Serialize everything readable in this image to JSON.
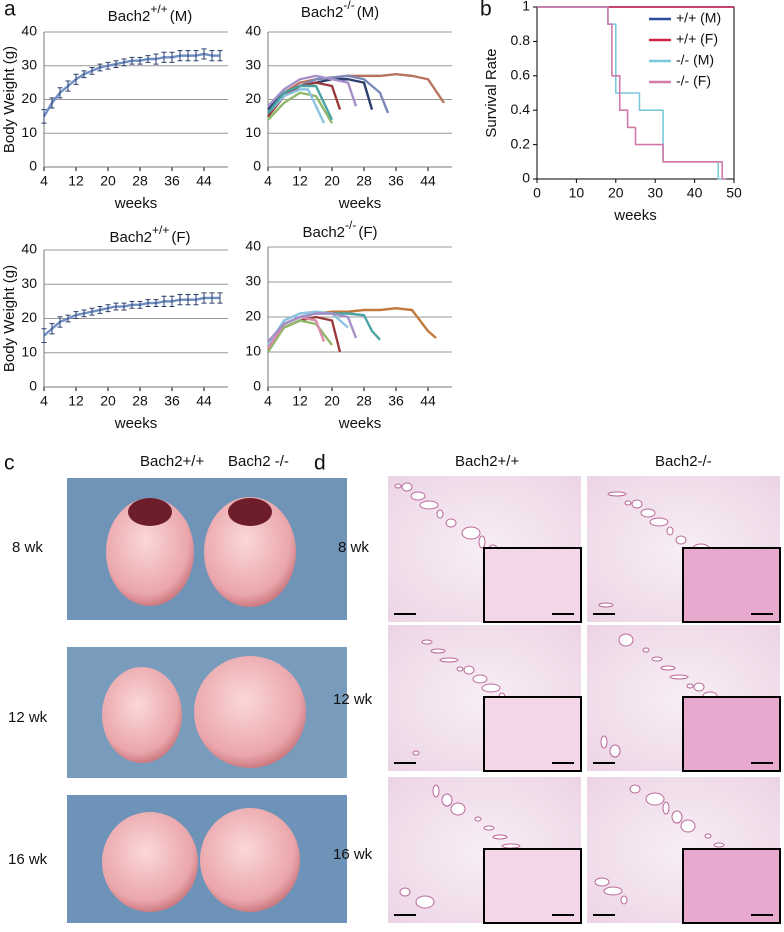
{
  "panel_labels": [
    "a",
    "b",
    "c",
    "d"
  ],
  "chart_data": [
    {
      "type": "line",
      "title": "Bach2",
      "title_sup": "+/+",
      "title_suffix": "(M)",
      "y_label": "Body Weight (g)",
      "x_label": "weeks",
      "xlim": [
        4,
        50
      ],
      "xticks": [
        4,
        12,
        20,
        28,
        36,
        44
      ],
      "ylim": [
        0,
        40
      ],
      "yticks": [
        0,
        10,
        20,
        30,
        40
      ],
      "grid": true,
      "series": [
        {
          "color": "#6f8fc4",
          "x": [
            4,
            6,
            8,
            10,
            12,
            14,
            16,
            18,
            20,
            22,
            24,
            26,
            28,
            30,
            32,
            34,
            36,
            38,
            40,
            42,
            44,
            46,
            48
          ],
          "values": [
            15,
            19,
            22,
            24,
            26,
            27.5,
            28.5,
            29.5,
            30,
            30.5,
            31,
            31.5,
            31.5,
            32,
            32,
            32.5,
            32.5,
            33,
            33,
            33,
            33.5,
            33,
            33
          ],
          "errors": [
            2,
            1.5,
            1.5,
            1.5,
            1.5,
            1,
            1,
            1,
            1,
            1,
            1,
            1,
            1,
            1,
            1.5,
            1.5,
            1.5,
            1.5,
            1.5,
            1.5,
            1.5,
            1.5,
            1.5
          ]
        }
      ]
    },
    {
      "type": "line",
      "title": "Bach2",
      "title_sup": "-/-",
      "title_suffix": "(M)",
      "x_label": "weeks",
      "xlim": [
        4,
        50
      ],
      "xticks": [
        4,
        12,
        20,
        28,
        36,
        44
      ],
      "ylim": [
        0,
        40
      ],
      "yticks": [
        0,
        10,
        20,
        30,
        40
      ],
      "grid": true,
      "series": [
        {
          "color": "#b8735e",
          "x": [
            4,
            8,
            12,
            16,
            20,
            24,
            28,
            32,
            36,
            40,
            44,
            48
          ],
          "values": [
            16,
            22,
            25,
            26,
            26.5,
            27,
            27,
            27,
            27.5,
            27,
            26,
            19
          ]
        },
        {
          "color": "#2f3f6e",
          "x": [
            4,
            8,
            12,
            16,
            20,
            24,
            28,
            30
          ],
          "values": [
            17,
            22,
            24,
            25,
            26,
            26,
            25,
            17
          ]
        },
        {
          "color": "#7b89b8",
          "x": [
            4,
            8,
            12,
            16,
            20,
            24,
            28,
            32,
            34
          ],
          "values": [
            15,
            21,
            24,
            26,
            26.5,
            27,
            26,
            22,
            16
          ]
        },
        {
          "color": "#9a3b3b",
          "x": [
            4,
            8,
            12,
            16,
            20,
            22
          ],
          "values": [
            15,
            21,
            24,
            25,
            24,
            17
          ]
        },
        {
          "color": "#8fb86a",
          "x": [
            4,
            8,
            12,
            16,
            18,
            20
          ],
          "values": [
            14,
            19,
            22,
            21,
            17,
            13
          ]
        },
        {
          "color": "#8cc3e0",
          "x": [
            4,
            8,
            12,
            14,
            18
          ],
          "values": [
            16,
            21,
            23,
            23,
            13
          ]
        },
        {
          "color": "#a58fc9",
          "x": [
            4,
            8,
            12,
            16,
            20,
            24,
            26
          ],
          "values": [
            18,
            23,
            26,
            27,
            26,
            25,
            18
          ]
        },
        {
          "color": "#4aa3a3",
          "x": [
            4,
            8,
            12,
            16,
            20
          ],
          "values": [
            16,
            22,
            24,
            24,
            14
          ]
        }
      ]
    },
    {
      "type": "line",
      "title": "Bach2",
      "title_sup": "+/+",
      "title_suffix": "(F)",
      "y_label": "Body Weight (g)",
      "x_label": "weeks",
      "xlim": [
        4,
        50
      ],
      "xticks": [
        4,
        12,
        20,
        28,
        36,
        44
      ],
      "ylim": [
        0,
        40
      ],
      "yticks": [
        0,
        10,
        20,
        30,
        40
      ],
      "grid": true,
      "series": [
        {
          "color": "#6f8fc4",
          "x": [
            4,
            6,
            8,
            10,
            12,
            14,
            16,
            18,
            20,
            22,
            24,
            26,
            28,
            30,
            32,
            34,
            36,
            38,
            40,
            42,
            44,
            46,
            48
          ],
          "values": [
            15,
            17,
            19,
            20,
            21,
            21.5,
            22,
            22.5,
            23,
            23.5,
            23.5,
            24,
            24,
            24.5,
            24.5,
            25,
            25,
            25.5,
            25.5,
            25.5,
            26,
            26,
            26
          ],
          "errors": [
            2,
            1.5,
            1.5,
            1,
            1,
            1,
            1,
            1,
            1,
            1,
            1,
            1,
            1,
            1,
            1,
            1.5,
            1.5,
            1.5,
            1.5,
            1.5,
            1.5,
            1.5,
            1.5
          ]
        }
      ]
    },
    {
      "type": "line",
      "title": "Bach2",
      "title_sup": "-/-",
      "title_suffix": "(F)",
      "x_label": "weeks",
      "xlim": [
        4,
        50
      ],
      "xticks": [
        4,
        12,
        20,
        28,
        36,
        44
      ],
      "ylim": [
        0,
        40
      ],
      "yticks": [
        0,
        10,
        20,
        30,
        40
      ],
      "grid": true,
      "series": [
        {
          "color": "#c27a3c",
          "x": [
            4,
            8,
            12,
            16,
            20,
            24,
            28,
            32,
            36,
            40,
            44,
            46
          ],
          "values": [
            12,
            18,
            20,
            21,
            21.5,
            21.5,
            22,
            22,
            22.5,
            22,
            16,
            14
          ]
        },
        {
          "color": "#4aa3a3",
          "x": [
            4,
            8,
            12,
            16,
            20,
            24,
            28,
            30,
            32
          ],
          "values": [
            12,
            18,
            20,
            21,
            21,
            21,
            20.5,
            16,
            13.5
          ]
        },
        {
          "color": "#8cc3e0",
          "x": [
            4,
            8,
            12,
            16,
            20,
            24
          ],
          "values": [
            12,
            19,
            21,
            21.5,
            21,
            17
          ]
        },
        {
          "color": "#9a3b3b",
          "x": [
            4,
            8,
            12,
            16,
            20,
            22
          ],
          "values": [
            11,
            17,
            19,
            20,
            19,
            10
          ]
        },
        {
          "color": "#8fb86a",
          "x": [
            4,
            8,
            12,
            16,
            20
          ],
          "values": [
            10,
            17,
            19,
            18,
            12
          ]
        },
        {
          "color": "#d98aa8",
          "x": [
            4,
            8,
            12,
            16,
            18
          ],
          "values": [
            11,
            18,
            20,
            19,
            13
          ]
        },
        {
          "color": "#a58fc9",
          "x": [
            4,
            8,
            12,
            16,
            20,
            24,
            26
          ],
          "values": [
            13,
            18,
            20,
            21,
            21,
            20,
            14
          ]
        }
      ]
    },
    {
      "type": "line",
      "step": true,
      "y_label": "Survival Rate",
      "x_label": "weeks",
      "legend": "upper right",
      "xlim": [
        0,
        50
      ],
      "xticks": [
        0,
        10,
        20,
        30,
        40,
        50
      ],
      "ylim": [
        0,
        1
      ],
      "yticks": [
        0,
        0.2,
        0.4,
        0.6,
        0.8,
        1
      ],
      "grid": false,
      "series": [
        {
          "name": "+/+ (M)",
          "color": "#2e4a9a",
          "x": [
            0,
            50
          ],
          "values": [
            1,
            1
          ]
        },
        {
          "name": "+/+ (F)",
          "color": "#d6254a",
          "x": [
            0,
            50
          ],
          "values": [
            1,
            1
          ]
        },
        {
          "name": "-/- (M)",
          "color": "#7cc8dc",
          "x": [
            0,
            18,
            20,
            26,
            32,
            46,
            48
          ],
          "values": [
            1,
            0.9,
            0.5,
            0.4,
            0.1,
            0,
            0
          ]
        },
        {
          "name": "-/- (F)",
          "color": "#d279a9",
          "x": [
            0,
            18,
            19,
            21,
            23,
            25,
            32,
            47,
            48
          ],
          "values": [
            1,
            0.9,
            0.6,
            0.4,
            0.3,
            0.2,
            0.1,
            0,
            0
          ]
        }
      ]
    }
  ],
  "photos_c": {
    "columns": [
      "Bach2+/+",
      "Bach2 -/-"
    ],
    "rows": [
      "8 wk",
      "12 wk",
      "16 wk"
    ]
  },
  "histology_d": {
    "columns": [
      "Bach2+/+",
      "Bach2-/-"
    ],
    "rows": [
      "8 wk",
      "12 wk",
      "16 wk"
    ]
  }
}
